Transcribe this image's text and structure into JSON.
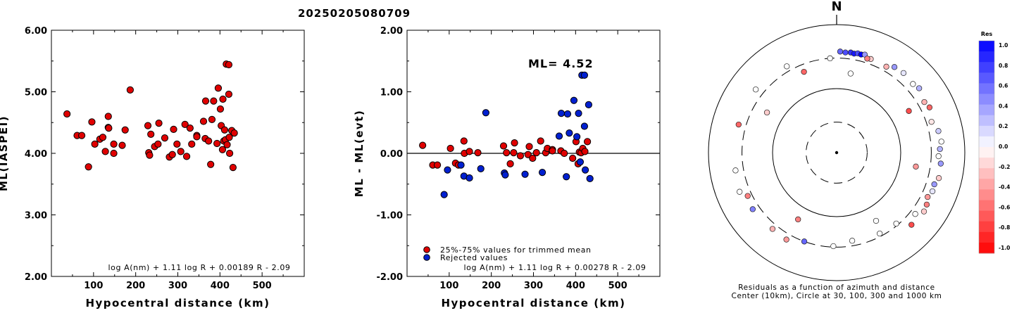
{
  "title": "20250205080709",
  "chart_data": [
    {
      "type": "scatter",
      "xlabel": "Hypocentral distance (km)",
      "ylabel": "ML(IASPEI)",
      "xlim": [
        0,
        600
      ],
      "ylim": [
        2.0,
        6.0
      ],
      "x_ticks": [
        "100",
        "200",
        "300",
        "400",
        "500"
      ],
      "y_ticks": [
        "2.00",
        "3.00",
        "4.00",
        "5.00",
        "6.00"
      ],
      "formula": "log A(nm) + 1.11 log R + 0.00189 R - 2.09",
      "series": [
        {
          "color": "#e00000",
          "points": [
            [
              37,
              4.64
            ],
            [
              61,
              4.29
            ],
            [
              72,
              4.29
            ],
            [
              88,
              3.78
            ],
            [
              96,
              4.51
            ],
            [
              103,
              4.15
            ],
            [
              115,
              4.23
            ],
            [
              122,
              4.26
            ],
            [
              128,
              4.03
            ],
            [
              135,
              4.6
            ],
            [
              135,
              4.42
            ],
            [
              136,
              4.41
            ],
            [
              148,
              4.0
            ],
            [
              148,
              4.15
            ],
            [
              168,
              4.13
            ],
            [
              175,
              4.38
            ],
            [
              187,
              5.03
            ],
            [
              229,
              4.45
            ],
            [
              231,
              4.01
            ],
            [
              233,
              3.97
            ],
            [
              236,
              4.31
            ],
            [
              245,
              4.11
            ],
            [
              253,
              4.15
            ],
            [
              255,
              4.49
            ],
            [
              269,
              4.25
            ],
            [
              280,
              3.94
            ],
            [
              287,
              3.98
            ],
            [
              290,
              4.39
            ],
            [
              298,
              4.15
            ],
            [
              307,
              4.03
            ],
            [
              317,
              4.47
            ],
            [
              321,
              3.95
            ],
            [
              329,
              4.41
            ],
            [
              333,
              4.15
            ],
            [
              345,
              4.29
            ],
            [
              345,
              4.27
            ],
            [
              361,
              4.52
            ],
            [
              365,
              4.24
            ],
            [
              366,
              4.85
            ],
            [
              373,
              4.2
            ],
            [
              378,
              3.82
            ],
            [
              381,
              4.55
            ],
            [
              385,
              4.85
            ],
            [
              393,
              4.16
            ],
            [
              396,
              5.06
            ],
            [
              401,
              4.72
            ],
            [
              403,
              4.45
            ],
            [
              406,
              4.06
            ],
            [
              407,
              4.88
            ],
            [
              409,
              4.2
            ],
            [
              411,
              4.38
            ],
            [
              413,
              4.22
            ],
            [
              415,
              5.45
            ],
            [
              417,
              4.14
            ],
            [
              421,
              5.44
            ],
            [
              421,
              4.96
            ],
            [
              422,
              4.26
            ],
            [
              423,
              4.0
            ],
            [
              428,
              4.37
            ],
            [
              431,
              3.77
            ],
            [
              434,
              4.33
            ]
          ]
        }
      ]
    },
    {
      "type": "scatter",
      "xlabel": "Hypocentral distance (km)",
      "ylabel": "ML - ML(evt)",
      "xlim": [
        0,
        600
      ],
      "ylim": [
        -2.0,
        2.0
      ],
      "x_ticks": [
        "100",
        "200",
        "300",
        "400",
        "500"
      ],
      "y_ticks": [
        "-2.00",
        "-1.00",
        "0.00",
        "1.00",
        "2.00"
      ],
      "annotation": "ML= 4.52",
      "formula": "log A(nm) + 1.11 log R + 0.00278 R - 2.09",
      "series": [
        {
          "name": "25%-75% values for trimmed mean",
          "color": "#e00000",
          "points": [
            [
              37,
              0.13
            ],
            [
              61,
              -0.19
            ],
            [
              72,
              -0.19
            ],
            [
              103,
              0.08
            ],
            [
              115,
              -0.16
            ],
            [
              122,
              -0.19
            ],
            [
              135,
              0.2
            ],
            [
              136,
              0.0
            ],
            [
              148,
              0.03
            ],
            [
              168,
              0.01
            ],
            [
              229,
              0.12
            ],
            [
              236,
              0.01
            ],
            [
              245,
              -0.17
            ],
            [
              253,
              0.01
            ],
            [
              255,
              0.17
            ],
            [
              269,
              -0.04
            ],
            [
              287,
              -0.02
            ],
            [
              290,
              0.11
            ],
            [
              298,
              -0.08
            ],
            [
              307,
              0.01
            ],
            [
              317,
              0.2
            ],
            [
              329,
              0.01
            ],
            [
              333,
              0.08
            ],
            [
              345,
              0.06
            ],
            [
              345,
              0.04
            ],
            [
              365,
              0.04
            ],
            [
              373,
              0.0
            ],
            [
              393,
              -0.08
            ],
            [
              401,
              0.19
            ],
            [
              406,
              -0.17
            ],
            [
              409,
              0.02
            ],
            [
              413,
              0.01
            ],
            [
              417,
              0.08
            ],
            [
              422,
              0.03
            ],
            [
              428,
              0.19
            ]
          ]
        },
        {
          "name": "Rejected values",
          "color": "#0020d0",
          "points": [
            [
              88,
              -0.67
            ],
            [
              96,
              -0.27
            ],
            [
              128,
              -0.19
            ],
            [
              135,
              -0.37
            ],
            [
              148,
              -0.4
            ],
            [
              175,
              -0.25
            ],
            [
              187,
              0.66
            ],
            [
              231,
              -0.32
            ],
            [
              233,
              -0.35
            ],
            [
              280,
              -0.34
            ],
            [
              321,
              -0.31
            ],
            [
              361,
              0.28
            ],
            [
              366,
              0.65
            ],
            [
              378,
              -0.38
            ],
            [
              381,
              0.64
            ],
            [
              385,
              0.33
            ],
            [
              396,
              0.86
            ],
            [
              403,
              0.27
            ],
            [
              407,
              0.65
            ],
            [
              411,
              -0.14
            ],
            [
              415,
              1.27
            ],
            [
              421,
              1.27
            ],
            [
              421,
              0.44
            ],
            [
              423,
              -0.27
            ],
            [
              431,
              0.79
            ],
            [
              434,
              -0.41
            ]
          ]
        }
      ]
    },
    {
      "type": "polar-scatter",
      "north_label": "N",
      "caption_line1": "Residuals as a function of azimuth and distance",
      "caption_line2": "Center (10km), Circle at 30, 100, 300 and 1000 km",
      "colorbar": {
        "title": "Res",
        "labels": [
          "1.0",
          "0.8",
          "0.6",
          "0.4",
          "0.2",
          "0.0",
          "-0.2",
          "-0.4",
          "-0.6",
          "-0.8",
          "-1.0"
        ]
      },
      "stations_residual_by_azimuth": [
        {
          "az": 2,
          "dist": 380,
          "res": 0.6
        },
        {
          "az": 5,
          "dist": 372,
          "res": 0.7
        },
        {
          "az": 8,
          "dist": 380,
          "res": 0.8
        },
        {
          "az": 10,
          "dist": 372,
          "res": 0.9
        },
        {
          "az": 12,
          "dist": 385,
          "res": 0.7
        },
        {
          "az": 14,
          "dist": 380,
          "res": 1.0
        },
        {
          "az": 16,
          "dist": 392,
          "res": 0.4
        },
        {
          "az": 20,
          "dist": 360,
          "res": -0.2
        },
        {
          "az": 18,
          "dist": 350,
          "res": -0.5
        },
        {
          "az": 30,
          "dist": 355,
          "res": -0.3
        },
        {
          "az": 34,
          "dist": 410,
          "res": 0.4
        },
        {
          "az": 40,
          "dist": 420,
          "res": 0.1
        },
        {
          "az": 48,
          "dist": 400,
          "res": 0.0
        },
        {
          "az": 52,
          "dist": 430,
          "res": 0.3
        },
        {
          "az": 60,
          "dist": 380,
          "res": -0.3
        },
        {
          "az": 64,
          "dist": 410,
          "res": -0.6
        },
        {
          "az": 72,
          "dist": 360,
          "res": -0.1
        },
        {
          "az": 78,
          "dist": 420,
          "res": 0.2
        },
        {
          "az": 84,
          "dist": 440,
          "res": 0.0
        },
        {
          "az": 88,
          "dist": 410,
          "res": 0.3
        },
        {
          "az": 92,
          "dist": 390,
          "res": 0.0
        },
        {
          "az": 96,
          "dist": 430,
          "res": 0.4
        },
        {
          "az": 104,
          "dist": 440,
          "res": -0.2
        },
        {
          "az": 108,
          "dist": 400,
          "res": 0.4
        },
        {
          "az": 112,
          "dist": 410,
          "res": 0.1
        },
        {
          "az": 116,
          "dist": 380,
          "res": -0.4
        },
        {
          "az": 120,
          "dist": 420,
          "res": -0.5
        },
        {
          "az": 124,
          "dist": 440,
          "res": -0.2
        },
        {
          "az": 128,
          "dist": 360,
          "res": 0.0
        },
        {
          "az": 134,
          "dist": 420,
          "res": -0.7
        },
        {
          "az": 140,
          "dist": 280,
          "res": 0.0
        },
        {
          "az": 152,
          "dist": 270,
          "res": 0.0
        },
        {
          "az": 170,
          "dist": 250,
          "res": 0.0
        },
        {
          "az": 182,
          "dist": 290,
          "res": 0.0
        },
        {
          "az": 200,
          "dist": 300,
          "res": 0.6
        },
        {
          "az": 210,
          "dist": 370,
          "res": -0.4
        },
        {
          "az": 220,
          "dist": 360,
          "res": -0.3
        },
        {
          "az": 236,
          "dist": 380,
          "res": 0.5
        },
        {
          "az": 244,
          "dist": 350,
          "res": -0.5
        },
        {
          "az": 248,
          "dist": 430,
          "res": 0.0
        },
        {
          "az": 260,
          "dist": 400,
          "res": 0.0
        },
        {
          "az": 286,
          "dist": 390,
          "res": -0.6
        },
        {
          "az": 308,
          "dist": 400,
          "res": 0.0
        },
        {
          "az": 330,
          "dist": 360,
          "res": 0.0
        },
        {
          "az": 338,
          "dist": 230,
          "res": -0.6
        },
        {
          "az": 356,
          "dist": 300,
          "res": 0.0
        },
        {
          "az": 10,
          "dist": 180,
          "res": 0.0
        },
        {
          "az": 60,
          "dist": 200,
          "res": -0.7
        },
        {
          "az": 100,
          "dist": 180,
          "res": -0.4
        },
        {
          "az": 150,
          "dist": 170,
          "res": 0.0
        },
        {
          "az": 210,
          "dist": 160,
          "res": -0.5
        },
        {
          "az": 300,
          "dist": 180,
          "res": -0.2
        }
      ]
    }
  ]
}
